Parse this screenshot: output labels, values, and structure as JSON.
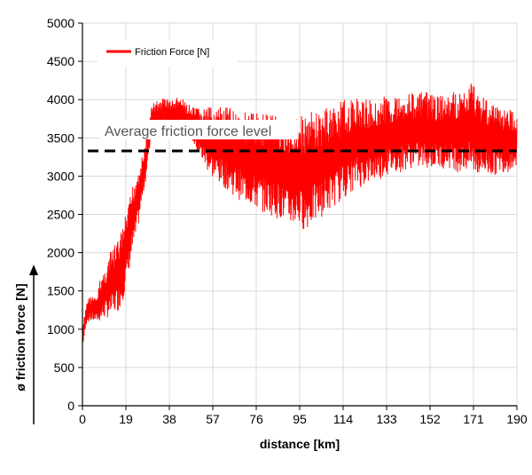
{
  "chart_data": {
    "type": "line",
    "xlabel": "distance [km]",
    "ylabel": "ø friction force [N]",
    "xlim": [
      0,
      190
    ],
    "ylim": [
      0,
      5000
    ],
    "x_ticks": [
      "0",
      "19",
      "38",
      "57",
      "76",
      "95",
      "114",
      "133",
      "152",
      "171",
      "190"
    ],
    "y_ticks": [
      "0",
      "500",
      "1000",
      "1500",
      "2000",
      "2500",
      "3000",
      "3500",
      "4000",
      "4500",
      "5000"
    ],
    "grid": true,
    "legend_position": "top-left",
    "series": [
      {
        "name": "Friction Force [N]",
        "color": "#ff0000",
        "x": [
          0,
          2,
          4,
          6,
          8,
          10,
          12,
          14,
          16,
          18,
          20,
          22,
          24,
          26,
          28,
          30,
          32,
          34,
          36,
          38,
          40,
          42,
          44,
          46,
          48,
          50,
          52,
          54,
          56,
          58,
          60,
          62,
          64,
          66,
          68,
          70,
          72,
          74,
          76,
          78,
          80,
          82,
          84,
          86,
          88,
          90,
          92,
          94,
          96,
          98,
          100,
          102,
          104,
          106,
          108,
          110,
          112,
          114,
          116,
          118,
          120,
          122,
          124,
          126,
          128,
          130,
          132,
          134,
          136,
          138,
          140,
          142,
          144,
          146,
          148,
          150,
          152,
          154,
          156,
          158,
          160,
          162,
          164,
          166,
          168,
          170,
          172,
          174,
          176,
          178,
          180,
          182,
          184,
          186,
          188,
          190
        ],
        "upper": [
          1000,
          1400,
          1450,
          1400,
          1700,
          1800,
          2000,
          2100,
          2200,
          2400,
          2600,
          2900,
          3100,
          3250,
          3500,
          3900,
          4000,
          4000,
          4050,
          4000,
          4000,
          4050,
          4000,
          3950,
          3900,
          3900,
          3900,
          3900,
          3900,
          3900,
          3900,
          3900,
          3900,
          3900,
          3900,
          3850,
          3850,
          3850,
          3850,
          3850,
          3850,
          3850,
          3850,
          3800,
          3700,
          3700,
          3750,
          3800,
          3800,
          3800,
          3850,
          3850,
          3850,
          3900,
          3900,
          3950,
          3950,
          4000,
          4000,
          4000,
          4050,
          4000,
          4000,
          4000,
          4000,
          4000,
          4050,
          4050,
          4050,
          4050,
          4100,
          4100,
          4100,
          4100,
          4100,
          4100,
          4100,
          4050,
          4050,
          4050,
          4050,
          4100,
          4100,
          4100,
          4150,
          4250,
          4200,
          4100,
          4050,
          4000,
          3950,
          3900,
          3900,
          3900,
          3850,
          3850
        ],
        "lower": [
          750,
          1100,
          1100,
          1100,
          1100,
          1150,
          1150,
          1200,
          1250,
          1400,
          1700,
          2000,
          2250,
          2650,
          3000,
          3500,
          3500,
          3550,
          3600,
          3600,
          3600,
          3600,
          3550,
          3500,
          3450,
          3300,
          3200,
          3100,
          3000,
          2950,
          2900,
          2850,
          2800,
          2750,
          2700,
          2650,
          2650,
          2600,
          2550,
          2550,
          2500,
          2500,
          2450,
          2450,
          2400,
          2350,
          2350,
          2350,
          2300,
          2300,
          2350,
          2400,
          2450,
          2500,
          2550,
          2600,
          2650,
          2700,
          2750,
          2800,
          2850,
          2850,
          2900,
          2900,
          2950,
          2950,
          3000,
          3000,
          3050,
          3050,
          3050,
          3100,
          3100,
          3100,
          3100,
          3100,
          3100,
          3100,
          3100,
          3100,
          3100,
          3100,
          3050,
          3050,
          3050,
          3050,
          3000,
          3000,
          3000,
          3000,
          3000,
          3050,
          3050,
          3050,
          3100,
          3100
        ]
      }
    ],
    "annotations": [
      {
        "text": "Average friction force level",
        "y": 3330,
        "style": "dashed",
        "color": "#000000"
      }
    ]
  }
}
